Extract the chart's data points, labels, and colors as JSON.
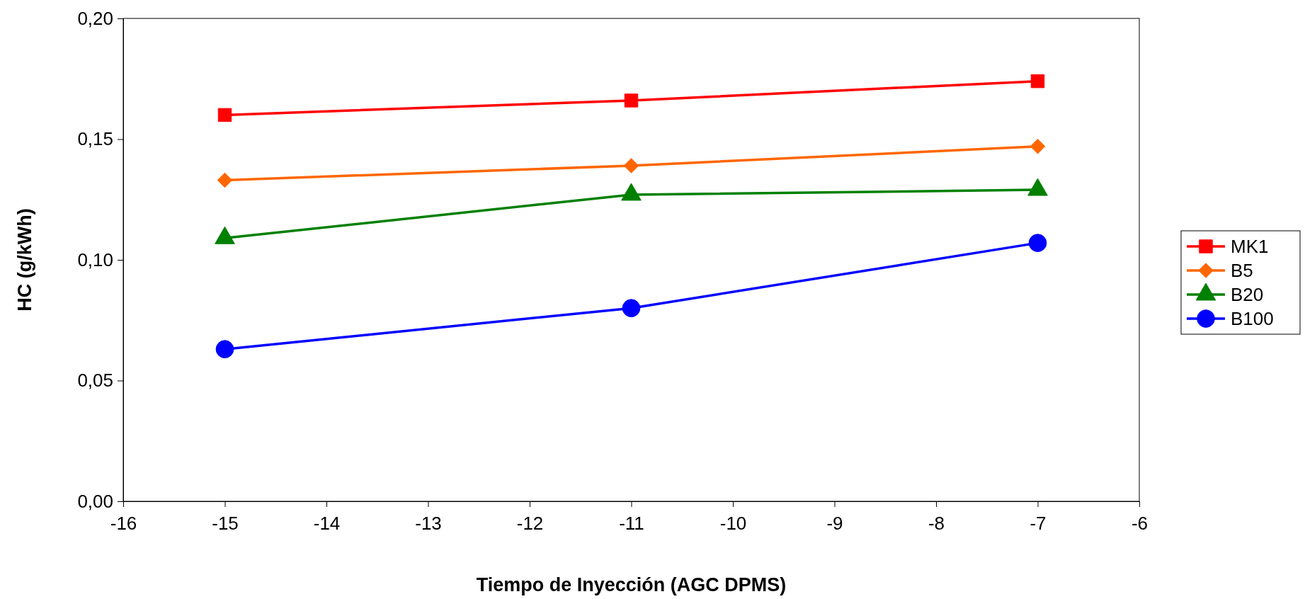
{
  "chart_data": {
    "type": "line",
    "xlabel": "Tiempo de Inyección (AGC DPMS)",
    "ylabel": "HC (g/kWh)",
    "x": [
      -15,
      -11,
      -7
    ],
    "xlim": [
      -16,
      -6
    ],
    "xticks": [
      -16,
      -15,
      -14,
      -13,
      -12,
      -11,
      -10,
      -9,
      -8,
      -7,
      -6
    ],
    "ylim": [
      0,
      0.2
    ],
    "yticks": [
      {
        "value": 0,
        "label": "0,00"
      },
      {
        "value": 0.05,
        "label": "0,05"
      },
      {
        "value": 0.1,
        "label": "0,10"
      },
      {
        "value": 0.15,
        "label": "0,15"
      },
      {
        "value": 0.2,
        "label": "0,20"
      }
    ],
    "grid": false,
    "legend": "right",
    "line_style": "solid",
    "series": [
      {
        "name": "MK1",
        "color": "#ff0000",
        "marker": "square",
        "values": [
          0.16,
          0.166,
          0.174
        ]
      },
      {
        "name": "B5",
        "color": "#ff6600",
        "marker": "diamond",
        "values": [
          0.133,
          0.139,
          0.147
        ]
      },
      {
        "name": "B20",
        "color": "#008000",
        "marker": "triangle",
        "values": [
          0.109,
          0.127,
          0.129
        ]
      },
      {
        "name": "B100",
        "color": "#0000ff",
        "marker": "circle",
        "values": [
          0.063,
          0.08,
          0.107
        ]
      }
    ]
  }
}
